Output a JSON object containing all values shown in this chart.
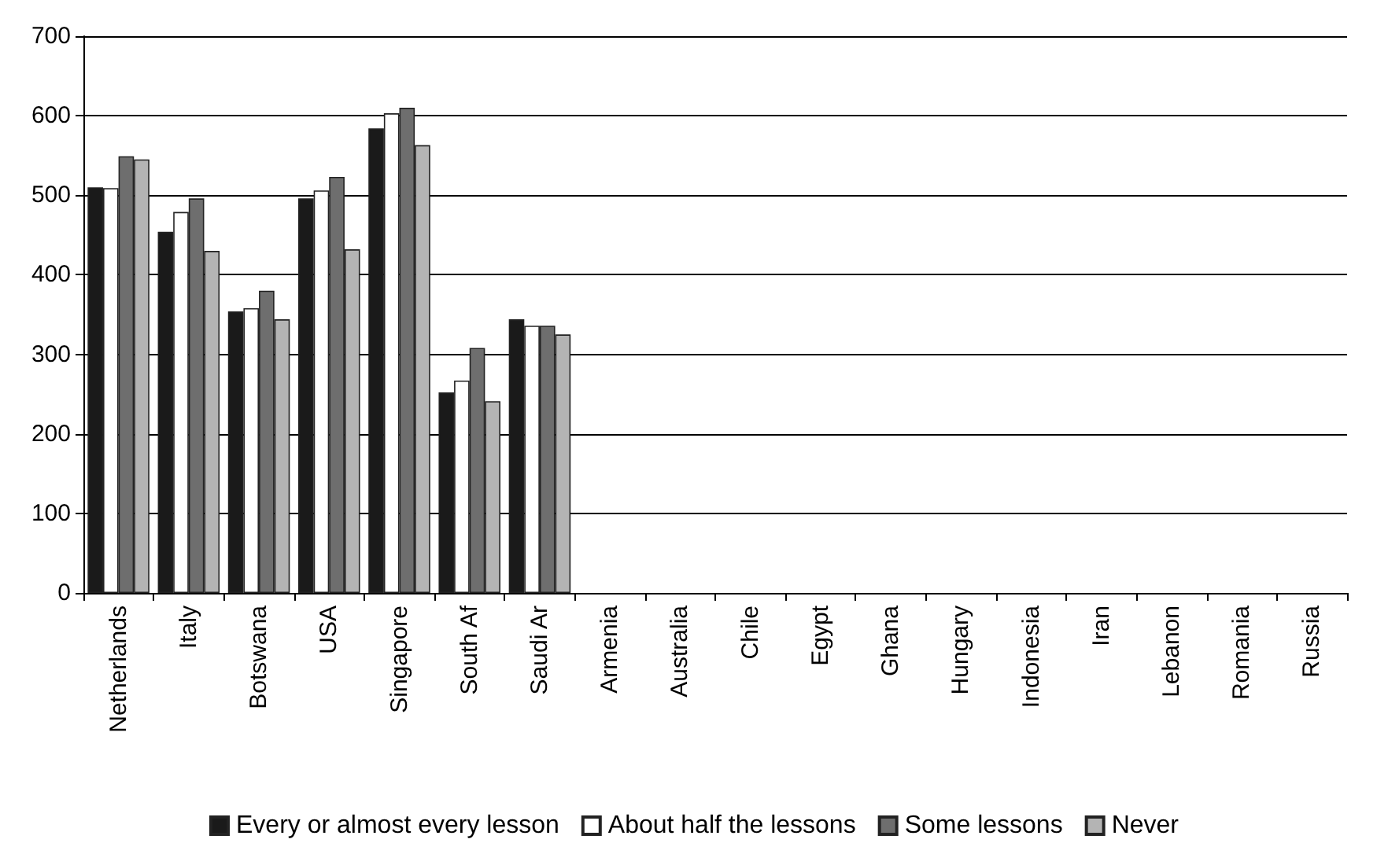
{
  "chart_data": {
    "type": "bar",
    "categories": [
      "Netherlands",
      "Italy",
      "Botswana",
      "USA",
      "Singapore",
      "South Af",
      "Saudi Ar",
      "Armenia",
      "Australia",
      "Chile",
      "Egypt",
      "Ghana",
      "Hungary",
      "Indonesia",
      "Iran",
      "Lebanon",
      "Romania",
      "Russia"
    ],
    "series": [
      {
        "name": "Every or almost every lesson",
        "color": "#1a1a1a",
        "values": [
          510,
          454,
          354,
          496,
          584,
          252,
          344,
          null,
          null,
          null,
          null,
          null,
          null,
          null,
          null,
          null,
          null,
          null
        ]
      },
      {
        "name": "About half the lessons",
        "color": "#ffffff",
        "values": [
          509,
          479,
          358,
          506,
          603,
          267,
          336,
          null,
          null,
          null,
          null,
          null,
          null,
          null,
          null,
          null,
          null,
          null
        ]
      },
      {
        "name": "Some lessons",
        "color": "#6e6e6e",
        "values": [
          549,
          496,
          380,
          523,
          610,
          308,
          336,
          null,
          null,
          null,
          null,
          null,
          null,
          null,
          null,
          null,
          null,
          null
        ]
      },
      {
        "name": "Never",
        "color": "#b4b4b4",
        "values": [
          545,
          430,
          344,
          432,
          563,
          241,
          325,
          null,
          null,
          null,
          null,
          null,
          null,
          null,
          null,
          null,
          null,
          null
        ]
      }
    ],
    "ylim": [
      0,
      700
    ],
    "yticks": [
      0,
      100,
      200,
      300,
      400,
      500,
      600,
      700
    ],
    "grid": "y",
    "legend": "bottom"
  }
}
